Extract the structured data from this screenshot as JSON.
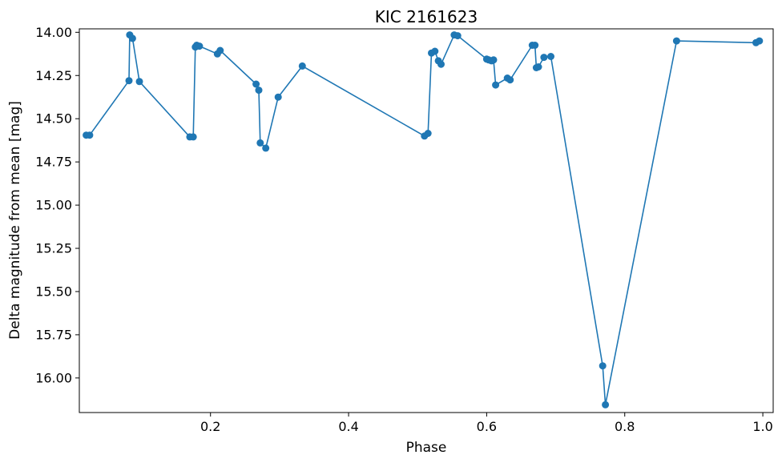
{
  "chart_data": {
    "type": "line",
    "title": "KIC 2161623",
    "xlabel": "Phase",
    "ylabel": "Delta magnitude from mean [mag]",
    "xlim": [
      0.01,
      1.015
    ],
    "ylim": [
      16.2,
      13.98
    ],
    "y_inverted": true,
    "xticks": [
      0.2,
      0.4,
      0.6,
      0.8,
      1.0
    ],
    "xtick_labels": [
      "0.2",
      "0.4",
      "0.6",
      "0.8",
      "1.0"
    ],
    "yticks": [
      14.0,
      14.25,
      14.5,
      14.75,
      15.0,
      15.25,
      15.5,
      15.75,
      16.0
    ],
    "ytick_labels": [
      "14.00",
      "14.25",
      "14.50",
      "14.75",
      "15.00",
      "15.25",
      "15.50",
      "15.75",
      "16.00"
    ],
    "grid": false,
    "color": "#1f77b4",
    "markers": true,
    "series": [
      {
        "x": [
          0.02,
          0.025,
          0.082,
          0.083,
          0.087,
          0.097,
          0.17,
          0.175,
          0.178,
          0.18,
          0.184,
          0.21,
          0.214,
          0.266,
          0.27,
          0.272,
          0.28,
          0.298,
          0.333,
          0.51,
          0.515,
          0.52,
          0.525,
          0.53,
          0.534,
          0.553,
          0.558,
          0.6,
          0.603,
          0.607,
          0.61,
          0.613,
          0.63,
          0.634,
          0.666,
          0.67,
          0.672,
          0.675,
          0.683,
          0.693,
          0.768,
          0.772,
          0.875,
          0.99,
          0.995
        ],
        "y": [
          14.595,
          14.595,
          14.28,
          14.015,
          14.035,
          14.285,
          14.605,
          14.605,
          14.085,
          14.075,
          14.08,
          14.125,
          14.105,
          14.3,
          14.335,
          14.64,
          14.67,
          14.375,
          14.195,
          14.6,
          14.585,
          14.12,
          14.11,
          14.165,
          14.185,
          14.015,
          14.02,
          14.155,
          14.16,
          14.165,
          14.16,
          14.305,
          14.265,
          14.275,
          14.075,
          14.075,
          14.205,
          14.2,
          14.145,
          14.14,
          15.93,
          16.155,
          14.05,
          14.06,
          14.05
        ]
      }
    ]
  }
}
